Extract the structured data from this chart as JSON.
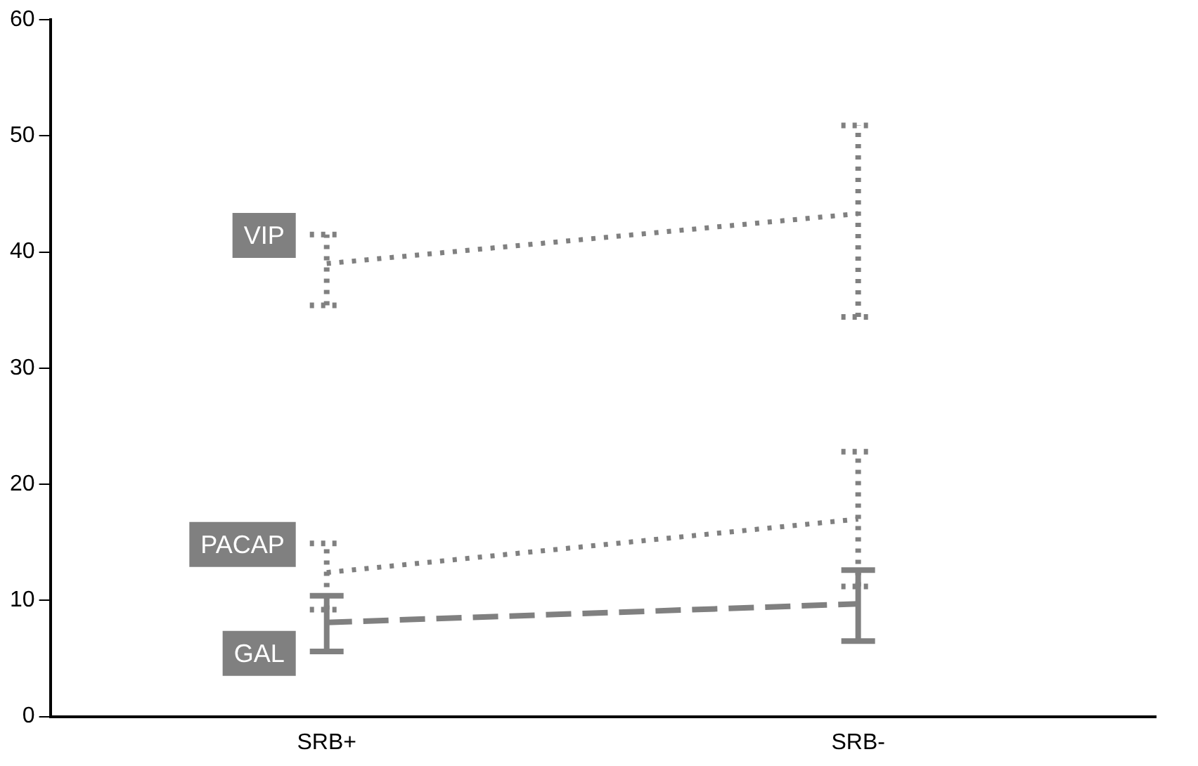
{
  "chart_data": {
    "type": "line",
    "categories": [
      "SRB+",
      "SRB-"
    ],
    "ylim": [
      0,
      60
    ],
    "yticks": [
      0,
      10,
      20,
      30,
      40,
      50,
      60
    ],
    "grid": false,
    "legend": false,
    "marker": "none",
    "series": [
      {
        "name": "VIP",
        "color": "#808080",
        "line_style": "dotted",
        "values": [
          39,
          43.3
        ],
        "errors": [
          [
            35.4,
            41.5
          ],
          [
            34.4,
            50.9
          ]
        ]
      },
      {
        "name": "PACAP",
        "color": "#808080",
        "line_style": "dotted",
        "values": [
          12.4,
          17
        ],
        "errors": [
          [
            9.2,
            14.9
          ],
          [
            11.2,
            22.8
          ]
        ]
      },
      {
        "name": "GAL",
        "color": "#808080",
        "line_style": "dashed",
        "values": [
          8.1,
          9.7
        ],
        "errors": [
          [
            5.6,
            10.4
          ],
          [
            6.5,
            12.6
          ]
        ]
      }
    ]
  }
}
